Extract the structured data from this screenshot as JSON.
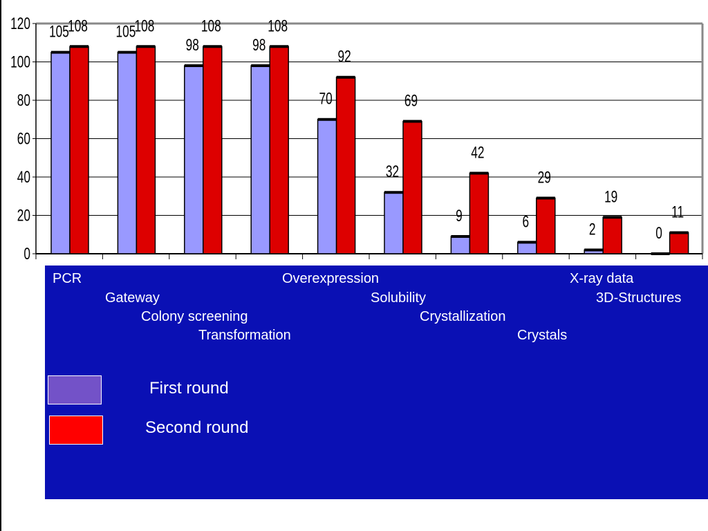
{
  "chart_data": {
    "type": "bar",
    "categories": [
      "PCR",
      "Gateway",
      "Colony screening",
      "Transformation",
      "Overexpression",
      "Solubility",
      "Crystallization",
      "Crystals",
      "X-ray data",
      "3D-Structures"
    ],
    "series": [
      {
        "name": "First round",
        "values": [
          105,
          105,
          98,
          98,
          70,
          32,
          9,
          6,
          2,
          0
        ],
        "color": "#9999ff"
      },
      {
        "name": "Second round",
        "values": [
          108,
          108,
          108,
          108,
          92,
          69,
          42,
          29,
          19,
          11
        ],
        "color": "#dd0000"
      }
    ],
    "ylim": [
      0,
      120
    ],
    "yticks": [
      "0",
      "20",
      "40",
      "60",
      "80",
      "100",
      "120"
    ],
    "grid": true,
    "legend": "bottom-left"
  },
  "legend": {
    "first_round_label": "First round",
    "second_round_label": "Second round",
    "first_round_color": "#7352c8",
    "second_round_color": "#ff0000"
  },
  "panel_color": "#0a10b4"
}
